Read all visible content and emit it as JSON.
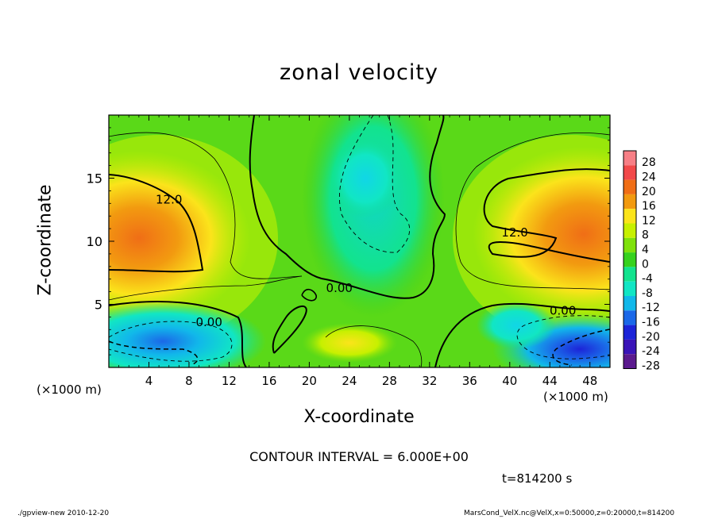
{
  "chart_data": {
    "type": "contour",
    "title": "zonal velocity",
    "xlabel": "X-coordinate",
    "ylabel": "Z-coordinate",
    "x_unit_label": "(×1000 m)",
    "xlim": [
      0,
      50
    ],
    "ylim": [
      0,
      20
    ],
    "x_ticks": [
      4,
      8,
      12,
      16,
      20,
      24,
      28,
      32,
      36,
      40,
      44,
      48
    ],
    "y_ticks": [
      5,
      10,
      15
    ],
    "colorbar_levels": [
      28,
      24,
      20,
      16,
      12,
      8,
      4,
      0,
      -4,
      -8,
      -12,
      -16,
      -20,
      -24,
      -28
    ],
    "colorbar_colors": [
      "#f77f86",
      "#f2494a",
      "#f06e16",
      "#f29a10",
      "#fbe41b",
      "#c7f000",
      "#7fe10b",
      "#36d21d",
      "#12e38e",
      "#11e6c4",
      "#11b8ea",
      "#1b68e8",
      "#1c24d8",
      "#3a14b8",
      "#5b1a8e"
    ],
    "contour_labels": [
      {
        "text": "12.0",
        "x": 6.0,
        "z": 13.3
      },
      {
        "text": "12.0",
        "x": 40.5,
        "z": 10.7
      },
      {
        "text": "0.00",
        "x": 23.0,
        "z": 6.3
      },
      {
        "text": "0.00",
        "x": 10.0,
        "z": 3.6
      },
      {
        "text": "0.00",
        "x": 45.3,
        "z": 4.5
      }
    ],
    "contour_interval_text": "CONTOUR INTERVAL = 6.000E+00",
    "time_text": "t=814200 s"
  },
  "footer": {
    "left": "./gpview-new  2010-12-20",
    "right": "MarsCond_VelX.nc@VelX,x=0:50000,z=0:20000,t=814200"
  }
}
